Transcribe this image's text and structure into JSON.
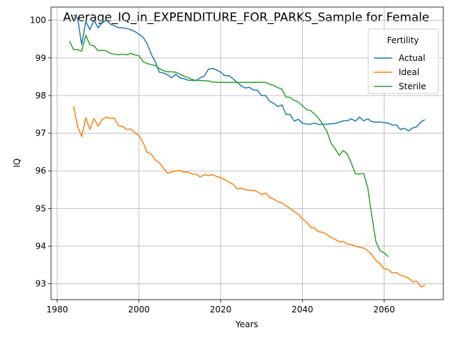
{
  "chart_data": {
    "type": "line",
    "title": "Average_IQ_in_EXPENDITURE_FOR_PARKS_Sample for Female",
    "xlabel": "Years",
    "ylabel": "IQ",
    "xlim": [
      1978.5,
      2074.5
    ],
    "ylim": [
      92.58,
      100.35
    ],
    "xticks": [
      1980,
      2000,
      2020,
      2040,
      2060
    ],
    "yticks": [
      93,
      94,
      95,
      96,
      97,
      98,
      99,
      100
    ],
    "grid": true,
    "legend": {
      "title": "Fertility",
      "position": "top-right"
    },
    "series": [
      {
        "name": "Actual",
        "color": "#1f77b4",
        "points": [
          [
            1984,
            100.15
          ],
          [
            1985,
            100.05
          ],
          [
            1986,
            99.35
          ],
          [
            1987,
            99.97
          ],
          [
            1988,
            99.75
          ],
          [
            1989,
            100.0
          ],
          [
            1990,
            99.8
          ],
          [
            1991,
            99.93
          ],
          [
            1992,
            100.0
          ],
          [
            1993,
            99.9
          ],
          [
            1994,
            99.85
          ],
          [
            1995,
            99.8
          ],
          [
            1996,
            99.8
          ],
          [
            1997,
            99.78
          ],
          [
            1998,
            99.75
          ],
          [
            1999,
            99.7
          ],
          [
            2000,
            99.63
          ],
          [
            2001,
            99.55
          ],
          [
            2002,
            99.38
          ],
          [
            2003,
            99.1
          ],
          [
            2004,
            98.9
          ],
          [
            2005,
            98.62
          ],
          [
            2006,
            98.6
          ],
          [
            2007,
            98.55
          ],
          [
            2008,
            98.47
          ],
          [
            2009,
            98.57
          ],
          [
            2010,
            98.47
          ],
          [
            2011,
            98.45
          ],
          [
            2012,
            98.41
          ],
          [
            2013,
            98.4
          ],
          [
            2014,
            98.4
          ],
          [
            2015,
            98.47
          ],
          [
            2016,
            98.52
          ],
          [
            2017,
            98.7
          ],
          [
            2018,
            98.72
          ],
          [
            2019,
            98.68
          ],
          [
            2020,
            98.62
          ],
          [
            2021,
            98.53
          ],
          [
            2022,
            98.53
          ],
          [
            2023,
            98.45
          ],
          [
            2024,
            98.35
          ],
          [
            2025,
            98.26
          ],
          [
            2026,
            98.2
          ],
          [
            2027,
            98.22
          ],
          [
            2028,
            98.15
          ],
          [
            2029,
            98.14
          ],
          [
            2030,
            98.0
          ],
          [
            2031,
            98.0
          ],
          [
            2032,
            97.85
          ],
          [
            2033,
            97.79
          ],
          [
            2034,
            97.71
          ],
          [
            2035,
            97.75
          ],
          [
            2036,
            97.5
          ],
          [
            2037,
            97.5
          ],
          [
            2038,
            97.32
          ],
          [
            2039,
            97.37
          ],
          [
            2040,
            97.27
          ],
          [
            2041,
            97.24
          ],
          [
            2042,
            97.24
          ],
          [
            2043,
            97.27
          ],
          [
            2044,
            97.23
          ],
          [
            2045,
            97.24
          ],
          [
            2046,
            97.24
          ],
          [
            2047,
            97.25
          ],
          [
            2048,
            97.26
          ],
          [
            2049,
            97.29
          ],
          [
            2050,
            97.33
          ],
          [
            2051,
            97.33
          ],
          [
            2052,
            97.38
          ],
          [
            2053,
            97.32
          ],
          [
            2054,
            97.43
          ],
          [
            2055,
            97.33
          ],
          [
            2056,
            97.38
          ],
          [
            2057,
            97.31
          ],
          [
            2058,
            97.29
          ],
          [
            2059,
            97.3
          ],
          [
            2060,
            97.28
          ],
          [
            2061,
            97.27
          ],
          [
            2062,
            97.21
          ],
          [
            2063,
            97.22
          ],
          [
            2064,
            97.1
          ],
          [
            2065,
            97.13
          ],
          [
            2066,
            97.06
          ],
          [
            2067,
            97.14
          ],
          [
            2068,
            97.17
          ],
          [
            2069,
            97.3
          ],
          [
            2070,
            97.36
          ]
        ]
      },
      {
        "name": "Ideal",
        "color": "#ff7f0e",
        "points": [
          [
            1984,
            97.72
          ],
          [
            1985,
            97.18
          ],
          [
            1986,
            96.91
          ],
          [
            1987,
            97.41
          ],
          [
            1988,
            97.1
          ],
          [
            1989,
            97.39
          ],
          [
            1990,
            97.19
          ],
          [
            1991,
            97.36
          ],
          [
            1992,
            97.43
          ],
          [
            1993,
            97.39
          ],
          [
            1994,
            97.4
          ],
          [
            1995,
            97.2
          ],
          [
            1996,
            97.18
          ],
          [
            1997,
            97.1
          ],
          [
            1998,
            97.11
          ],
          [
            1999,
            97.01
          ],
          [
            2000,
            96.94
          ],
          [
            2001,
            96.75
          ],
          [
            2002,
            96.49
          ],
          [
            2003,
            96.45
          ],
          [
            2004,
            96.29
          ],
          [
            2005,
            96.21
          ],
          [
            2006,
            96.07
          ],
          [
            2007,
            95.94
          ],
          [
            2008,
            95.97
          ],
          [
            2009,
            96.0
          ],
          [
            2010,
            96.01
          ],
          [
            2011,
            95.97
          ],
          [
            2012,
            95.97
          ],
          [
            2013,
            95.92
          ],
          [
            2014,
            95.91
          ],
          [
            2015,
            95.84
          ],
          [
            2016,
            95.9
          ],
          [
            2017,
            95.88
          ],
          [
            2018,
            95.9
          ],
          [
            2019,
            95.85
          ],
          [
            2020,
            95.82
          ],
          [
            2021,
            95.77
          ],
          [
            2022,
            95.7
          ],
          [
            2023,
            95.65
          ],
          [
            2024,
            95.52
          ],
          [
            2025,
            95.54
          ],
          [
            2026,
            95.5
          ],
          [
            2027,
            95.49
          ],
          [
            2028,
            95.48
          ],
          [
            2029,
            95.45
          ],
          [
            2030,
            95.37
          ],
          [
            2031,
            95.41
          ],
          [
            2032,
            95.3
          ],
          [
            2033,
            95.25
          ],
          [
            2034,
            95.18
          ],
          [
            2035,
            95.15
          ],
          [
            2036,
            95.07
          ],
          [
            2037,
            95.0
          ],
          [
            2038,
            94.92
          ],
          [
            2039,
            94.85
          ],
          [
            2040,
            94.72
          ],
          [
            2041,
            94.65
          ],
          [
            2042,
            94.5
          ],
          [
            2043,
            94.48
          ],
          [
            2044,
            94.38
          ],
          [
            2045,
            94.37
          ],
          [
            2046,
            94.31
          ],
          [
            2047,
            94.23
          ],
          [
            2048,
            94.18
          ],
          [
            2049,
            94.12
          ],
          [
            2050,
            94.12
          ],
          [
            2051,
            94.06
          ],
          [
            2052,
            94.04
          ],
          [
            2053,
            94.0
          ],
          [
            2054,
            93.97
          ],
          [
            2055,
            93.95
          ],
          [
            2056,
            93.88
          ],
          [
            2057,
            93.78
          ],
          [
            2058,
            93.62
          ],
          [
            2059,
            93.53
          ],
          [
            2060,
            93.4
          ],
          [
            2061,
            93.38
          ],
          [
            2062,
            93.29
          ],
          [
            2063,
            93.3
          ],
          [
            2064,
            93.23
          ],
          [
            2065,
            93.2
          ],
          [
            2066,
            93.15
          ],
          [
            2067,
            93.05
          ],
          [
            2068,
            93.07
          ],
          [
            2069,
            92.92
          ],
          [
            2070,
            92.97
          ]
        ]
      },
      {
        "name": "Sterile",
        "color": "#2ca02c",
        "points": [
          [
            1983,
            99.45
          ],
          [
            1984,
            99.22
          ],
          [
            1985,
            99.22
          ],
          [
            1986,
            99.18
          ],
          [
            1987,
            99.6
          ],
          [
            1988,
            99.35
          ],
          [
            1989,
            99.32
          ],
          [
            1990,
            99.19
          ],
          [
            1991,
            99.2
          ],
          [
            1992,
            99.19
          ],
          [
            1993,
            99.12
          ],
          [
            1994,
            99.1
          ],
          [
            1995,
            99.08
          ],
          [
            1996,
            99.1
          ],
          [
            1997,
            99.08
          ],
          [
            1998,
            99.12
          ],
          [
            1999,
            99.08
          ],
          [
            2000,
            99.06
          ],
          [
            2001,
            98.9
          ],
          [
            2002,
            98.85
          ],
          [
            2003,
            98.82
          ],
          [
            2004,
            98.8
          ],
          [
            2005,
            98.72
          ],
          [
            2006,
            98.66
          ],
          [
            2007,
            98.63
          ],
          [
            2008,
            98.63
          ],
          [
            2009,
            98.62
          ],
          [
            2010,
            98.57
          ],
          [
            2011,
            98.52
          ],
          [
            2012,
            98.48
          ],
          [
            2013,
            98.43
          ],
          [
            2014,
            98.4
          ],
          [
            2015,
            98.4
          ],
          [
            2016,
            98.39
          ],
          [
            2017,
            98.39
          ],
          [
            2018,
            98.36
          ],
          [
            2019,
            98.35
          ],
          [
            2020,
            98.35
          ],
          [
            2021,
            98.35
          ],
          [
            2022,
            98.35
          ],
          [
            2023,
            98.35
          ],
          [
            2024,
            98.35
          ],
          [
            2025,
            98.35
          ],
          [
            2026,
            98.35
          ],
          [
            2027,
            98.35
          ],
          [
            2028,
            98.35
          ],
          [
            2029,
            98.35
          ],
          [
            2030,
            98.35
          ],
          [
            2031,
            98.35
          ],
          [
            2032,
            98.3
          ],
          [
            2033,
            98.27
          ],
          [
            2034,
            98.21
          ],
          [
            2035,
            98.17
          ],
          [
            2036,
            97.96
          ],
          [
            2037,
            97.95
          ],
          [
            2038,
            97.87
          ],
          [
            2039,
            97.83
          ],
          [
            2040,
            97.73
          ],
          [
            2041,
            97.63
          ],
          [
            2042,
            97.6
          ],
          [
            2043,
            97.51
          ],
          [
            2044,
            97.39
          ],
          [
            2045,
            97.23
          ],
          [
            2046,
            97.05
          ],
          [
            2047,
            96.74
          ],
          [
            2048,
            96.59
          ],
          [
            2049,
            96.41
          ],
          [
            2050,
            96.54
          ],
          [
            2051,
            96.45
          ],
          [
            2052,
            96.2
          ],
          [
            2053,
            95.92
          ],
          [
            2054,
            95.92
          ],
          [
            2055,
            95.93
          ],
          [
            2056,
            95.55
          ],
          [
            2057,
            94.8
          ],
          [
            2058,
            94.12
          ],
          [
            2059,
            93.88
          ],
          [
            2060,
            93.82
          ],
          [
            2061,
            93.72
          ]
        ]
      }
    ]
  }
}
